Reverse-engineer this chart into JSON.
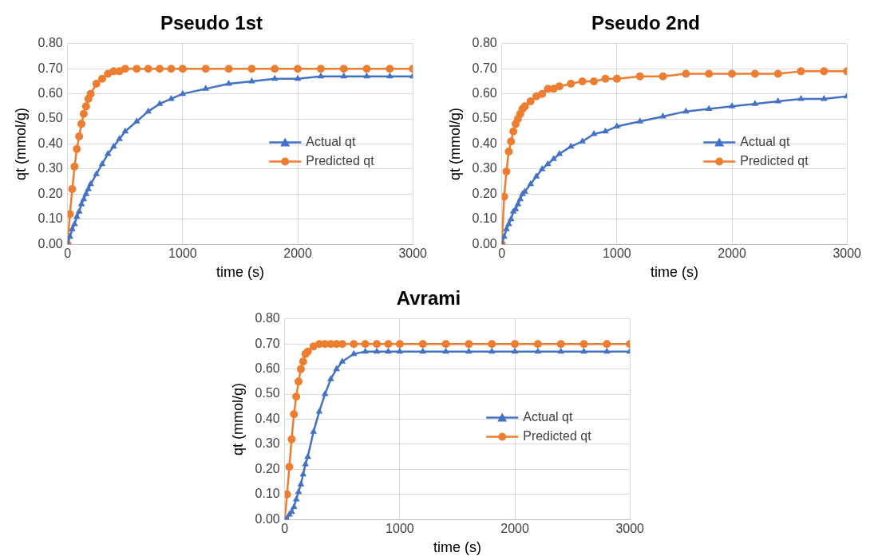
{
  "chart_data": [
    {
      "type": "line",
      "title": "Pseudo 1st",
      "xlabel": "time (s)",
      "ylabel": "qt (mmol/g)",
      "xlim": [
        0,
        3000
      ],
      "xticks": [
        0,
        1000,
        2000,
        3000
      ],
      "ylim": [
        0,
        0.8
      ],
      "yticks": [
        {
          "value": 0,
          "label": "0.00"
        },
        {
          "value": 0.1,
          "label": "0.10"
        },
        {
          "value": 0.2,
          "label": "0.20"
        },
        {
          "value": 0.3,
          "label": "0.30"
        },
        {
          "value": 0.4,
          "label": "0.40"
        },
        {
          "value": 0.5,
          "label": "0.50"
        },
        {
          "value": 0.6,
          "label": "0.60"
        },
        {
          "value": 0.7,
          "label": "0.70"
        },
        {
          "value": 0.8,
          "label": "0.80"
        }
      ],
      "grid": true,
      "legend": "right",
      "line_style": "solid",
      "x": [
        0,
        20,
        40,
        60,
        80,
        100,
        120,
        140,
        160,
        180,
        200,
        250,
        300,
        350,
        400,
        450,
        500,
        600,
        700,
        800,
        900,
        1000,
        1200,
        1400,
        1600,
        1800,
        2000,
        2200,
        2400,
        2600,
        2800,
        3000
      ],
      "series": [
        {
          "name": "Actual qt",
          "color": "#4472c4",
          "marker": "triangle",
          "values": [
            0,
            0.03,
            0.06,
            0.08,
            0.11,
            0.13,
            0.16,
            0.18,
            0.2,
            0.22,
            0.24,
            0.28,
            0.32,
            0.36,
            0.39,
            0.42,
            0.45,
            0.49,
            0.53,
            0.56,
            0.58,
            0.6,
            0.62,
            0.64,
            0.65,
            0.66,
            0.66,
            0.67,
            0.67,
            0.67,
            0.67,
            0.67
          ]
        },
        {
          "name": "Predicted qt",
          "color": "#ed7d31",
          "marker": "circle",
          "values": [
            0,
            0.12,
            0.22,
            0.31,
            0.38,
            0.43,
            0.48,
            0.52,
            0.55,
            0.58,
            0.6,
            0.64,
            0.66,
            0.68,
            0.69,
            0.69,
            0.7,
            0.7,
            0.7,
            0.7,
            0.7,
            0.7,
            0.7,
            0.7,
            0.7,
            0.7,
            0.7,
            0.7,
            0.7,
            0.7,
            0.7,
            0.7
          ]
        }
      ]
    },
    {
      "type": "line",
      "title": "Pseudo 2nd",
      "xlabel": "time (s)",
      "ylabel": "qt (mmol/g)",
      "xlim": [
        0,
        3000
      ],
      "xticks": [
        0,
        1000,
        2000,
        3000
      ],
      "ylim": [
        0,
        0.8
      ],
      "yticks": [
        {
          "value": 0,
          "label": "0.00"
        },
        {
          "value": 0.1,
          "label": "0.10"
        },
        {
          "value": 0.2,
          "label": "0.20"
        },
        {
          "value": 0.3,
          "label": "0.30"
        },
        {
          "value": 0.4,
          "label": "0.40"
        },
        {
          "value": 0.5,
          "label": "0.50"
        },
        {
          "value": 0.6,
          "label": "0.60"
        },
        {
          "value": 0.7,
          "label": "0.70"
        },
        {
          "value": 0.8,
          "label": "0.80"
        }
      ],
      "grid": true,
      "legend": "right",
      "line_style": "solid",
      "x": [
        0,
        20,
        40,
        60,
        80,
        100,
        120,
        140,
        160,
        180,
        200,
        250,
        300,
        350,
        400,
        450,
        500,
        600,
        700,
        800,
        900,
        1000,
        1200,
        1400,
        1600,
        1800,
        2000,
        2200,
        2400,
        2600,
        2800,
        3000
      ],
      "series": [
        {
          "name": "Actual qt",
          "color": "#4472c4",
          "marker": "triangle",
          "values": [
            0,
            0.03,
            0.06,
            0.08,
            0.1,
            0.13,
            0.14,
            0.16,
            0.18,
            0.2,
            0.21,
            0.24,
            0.27,
            0.3,
            0.32,
            0.34,
            0.36,
            0.39,
            0.41,
            0.44,
            0.45,
            0.47,
            0.49,
            0.51,
            0.53,
            0.54,
            0.55,
            0.56,
            0.57,
            0.58,
            0.58,
            0.59
          ]
        },
        {
          "name": "Predicted qt",
          "color": "#ed7d31",
          "marker": "circle",
          "values": [
            0,
            0.19,
            0.29,
            0.37,
            0.41,
            0.45,
            0.48,
            0.5,
            0.52,
            0.54,
            0.55,
            0.57,
            0.59,
            0.6,
            0.62,
            0.62,
            0.63,
            0.64,
            0.65,
            0.65,
            0.66,
            0.66,
            0.67,
            0.67,
            0.68,
            0.68,
            0.68,
            0.68,
            0.68,
            0.69,
            0.69,
            0.69
          ]
        }
      ]
    },
    {
      "type": "line",
      "title": "Avrami",
      "xlabel": "time (s)",
      "ylabel": "qt (mmol/g)",
      "xlim": [
        0,
        3000
      ],
      "xticks": [
        0,
        1000,
        2000,
        3000
      ],
      "ylim": [
        0,
        0.8
      ],
      "yticks": [
        {
          "value": 0,
          "label": "0.00"
        },
        {
          "value": 0.1,
          "label": "0.10"
        },
        {
          "value": 0.2,
          "label": "0.20"
        },
        {
          "value": 0.3,
          "label": "0.30"
        },
        {
          "value": 0.4,
          "label": "0.40"
        },
        {
          "value": 0.5,
          "label": "0.50"
        },
        {
          "value": 0.6,
          "label": "0.60"
        },
        {
          "value": 0.7,
          "label": "0.70"
        },
        {
          "value": 0.8,
          "label": "0.80"
        }
      ],
      "grid": true,
      "legend": "right",
      "line_style": "solid",
      "x": [
        0,
        20,
        40,
        60,
        80,
        100,
        120,
        140,
        160,
        180,
        200,
        250,
        300,
        350,
        400,
        450,
        500,
        600,
        700,
        800,
        900,
        1000,
        1200,
        1400,
        1600,
        1800,
        2000,
        2200,
        2400,
        2600,
        2800,
        3000
      ],
      "series": [
        {
          "name": "Actual qt",
          "color": "#4472c4",
          "marker": "triangle",
          "values": [
            0,
            0.0,
            0.02,
            0.03,
            0.05,
            0.08,
            0.11,
            0.14,
            0.18,
            0.22,
            0.25,
            0.35,
            0.43,
            0.5,
            0.56,
            0.6,
            0.63,
            0.66,
            0.67,
            0.67,
            0.67,
            0.67,
            0.67,
            0.67,
            0.67,
            0.67,
            0.67,
            0.67,
            0.67,
            0.67,
            0.67,
            0.67
          ]
        },
        {
          "name": "Predicted qt",
          "color": "#ed7d31",
          "marker": "circle",
          "values": [
            0,
            0.1,
            0.21,
            0.32,
            0.42,
            0.49,
            0.55,
            0.6,
            0.63,
            0.66,
            0.67,
            0.69,
            0.7,
            0.7,
            0.7,
            0.7,
            0.7,
            0.7,
            0.7,
            0.7,
            0.7,
            0.7,
            0.7,
            0.7,
            0.7,
            0.7,
            0.7,
            0.7,
            0.7,
            0.7,
            0.7,
            0.7
          ]
        }
      ]
    }
  ]
}
